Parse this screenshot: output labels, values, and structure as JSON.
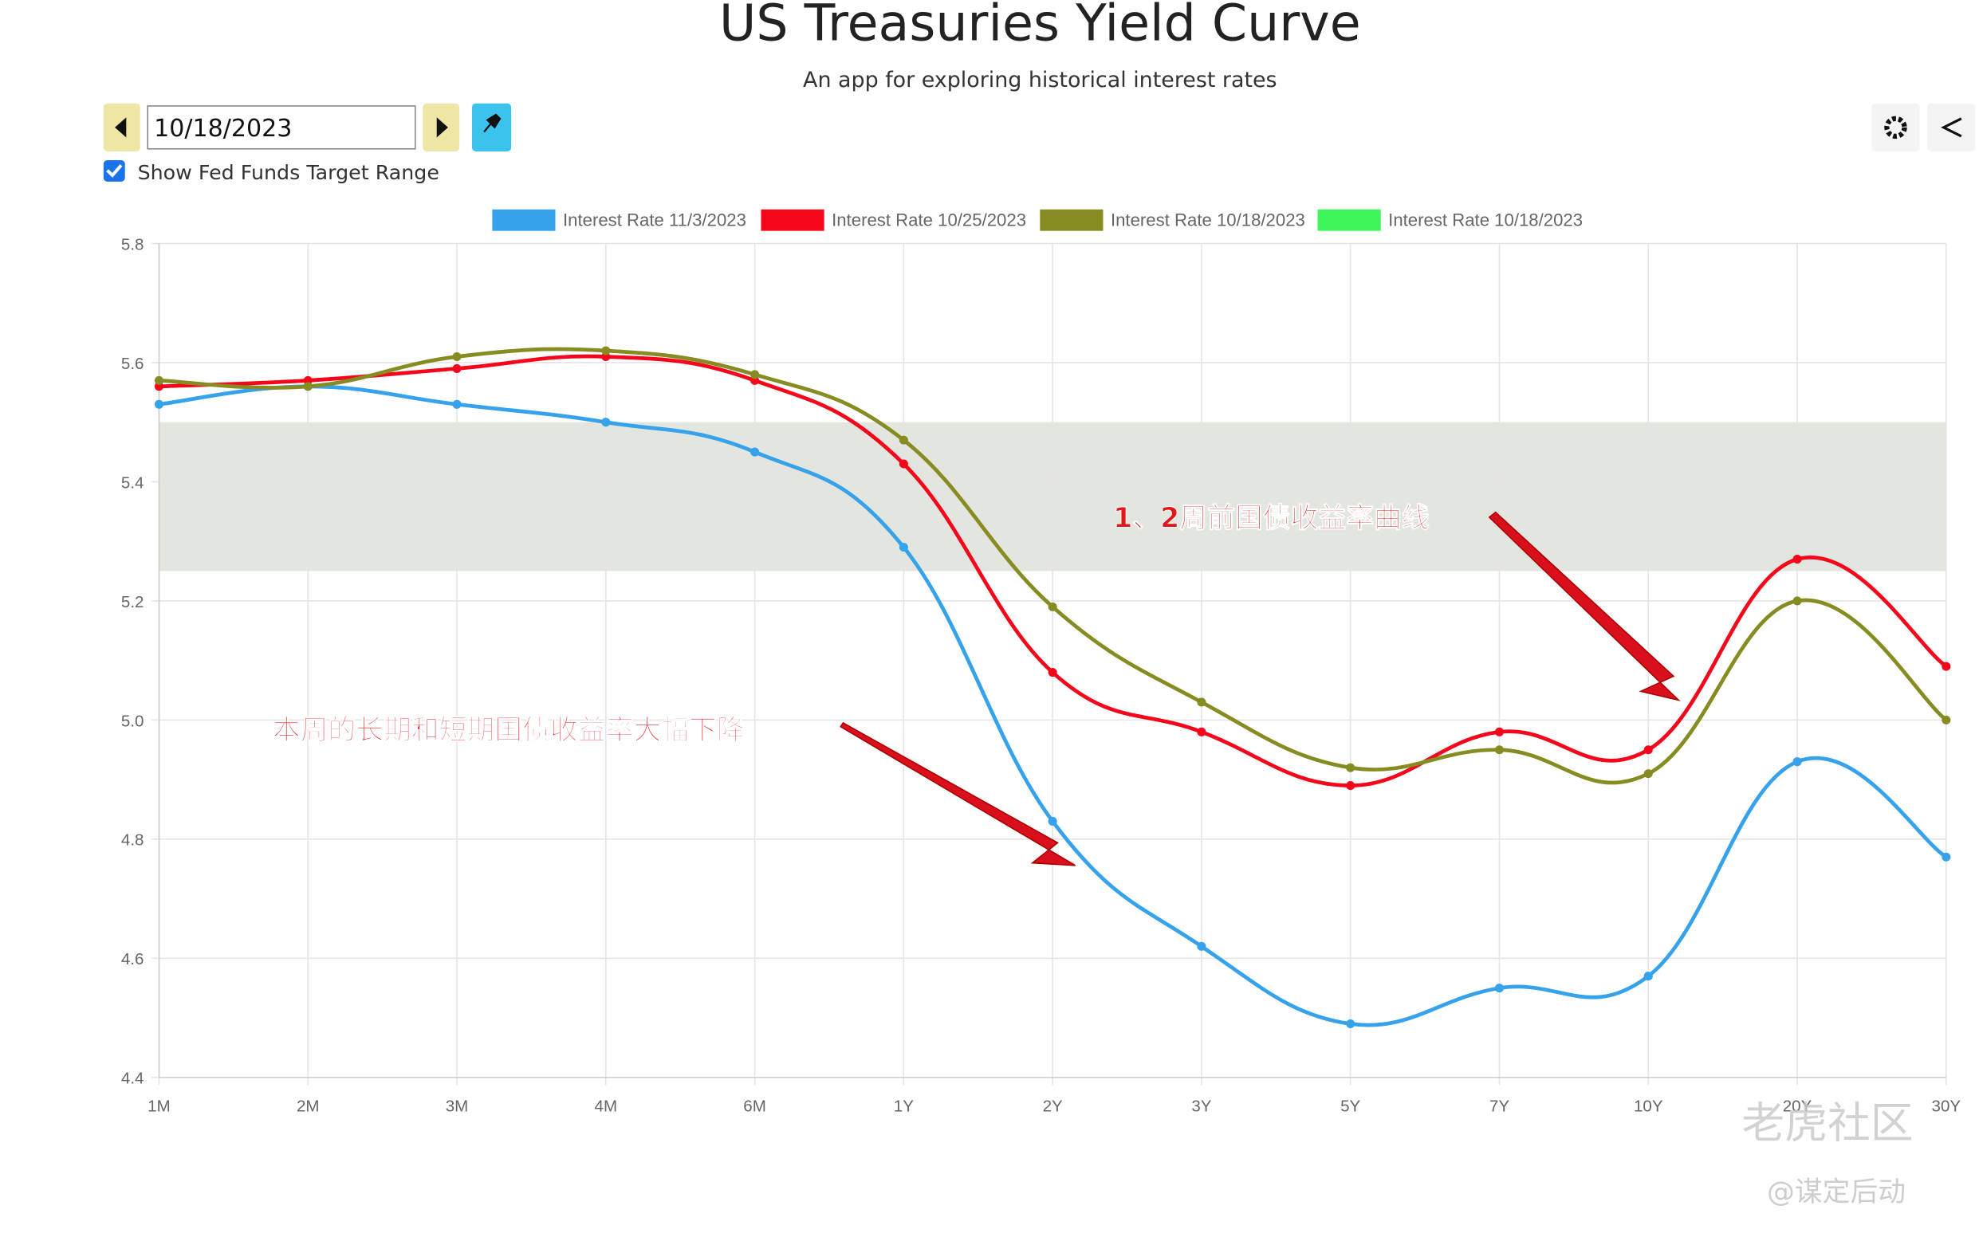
{
  "header": {
    "title": "US Treasuries Yield Curve",
    "subtitle": "An app for exploring historical interest rates"
  },
  "controls": {
    "date": "10/18/2023",
    "checkbox_label": "Show Fed Funds Target Range",
    "checked": true
  },
  "annotations": [
    "1、2周前国债收益率曲线",
    "本周的长期和短期国债收益率大幅下降"
  ],
  "watermark": [
    "老虎社区",
    "@谋定后动"
  ],
  "chart_data": {
    "type": "line",
    "categories": [
      "1M",
      "2M",
      "3M",
      "4M",
      "6M",
      "1Y",
      "2Y",
      "3Y",
      "5Y",
      "7Y",
      "10Y",
      "20Y",
      "30Y"
    ],
    "series": [
      {
        "name": "Interest Rate 11/3/2023",
        "color": "#36a2eb",
        "values": [
          5.53,
          5.56,
          5.53,
          5.5,
          5.45,
          5.29,
          4.83,
          4.62,
          4.49,
          4.55,
          4.57,
          4.93,
          4.77
        ]
      },
      {
        "name": "Interest Rate 10/25/2023",
        "color": "#f5071b",
        "values": [
          5.56,
          5.57,
          5.59,
          5.61,
          5.57,
          5.43,
          5.08,
          4.98,
          4.89,
          4.98,
          4.95,
          5.27,
          5.09
        ]
      },
      {
        "name": "Interest Rate 10/18/2023",
        "color": "#878c22",
        "values": [
          5.57,
          5.56,
          5.61,
          5.62,
          5.58,
          5.47,
          5.19,
          5.03,
          4.92,
          4.95,
          4.91,
          5.2,
          5.0
        ]
      },
      {
        "name": "Interest Rate 10/18/2023",
        "color": "#3ef55a",
        "range": [
          5.25,
          5.5
        ],
        "band_color": "#e3e5df"
      }
    ],
    "ylim": [
      4.4,
      5.8
    ],
    "yticks": [
      4.4,
      4.6,
      4.8,
      {
        "value": 5,
        "label": "5.0"
      },
      5.2,
      5.4,
      5.6,
      5.8
    ],
    "grid": true
  }
}
